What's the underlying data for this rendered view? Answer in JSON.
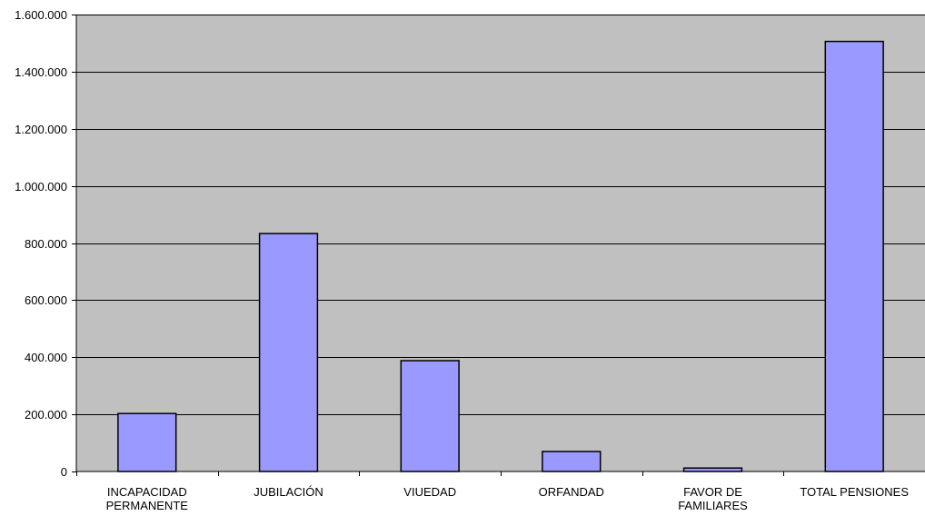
{
  "chart_data": {
    "type": "bar",
    "title": "",
    "xlabel": "",
    "ylabel": "",
    "categories": [
      [
        "INCAPACIDAD",
        "PERMANENTE"
      ],
      [
        "JUBILACIÓN"
      ],
      [
        "VIUEDAD"
      ],
      [
        "ORFANDAD"
      ],
      [
        "FAVOR DE",
        "FAMILIARES"
      ],
      [
        "TOTAL PENSIONES"
      ]
    ],
    "values": [
      203000,
      833000,
      388000,
      70000,
      12000,
      1506000
    ],
    "ylim": [
      0,
      1600000
    ],
    "y_ticks": [
      0,
      200000,
      400000,
      600000,
      800000,
      1000000,
      1200000,
      1400000,
      1600000
    ],
    "y_tick_labels": [
      "0",
      "200.000",
      "400.000",
      "600.000",
      "800.000",
      "1.000.000",
      "1.200.000",
      "1.400.000",
      "1.600.000"
    ],
    "grid": true,
    "legend": "none",
    "colors": {
      "plot_background": "#c0c0c0",
      "bar_fill": "#9999ff",
      "bar_stroke": "#000000",
      "gridline": "#000000",
      "axis": "#000000"
    }
  }
}
